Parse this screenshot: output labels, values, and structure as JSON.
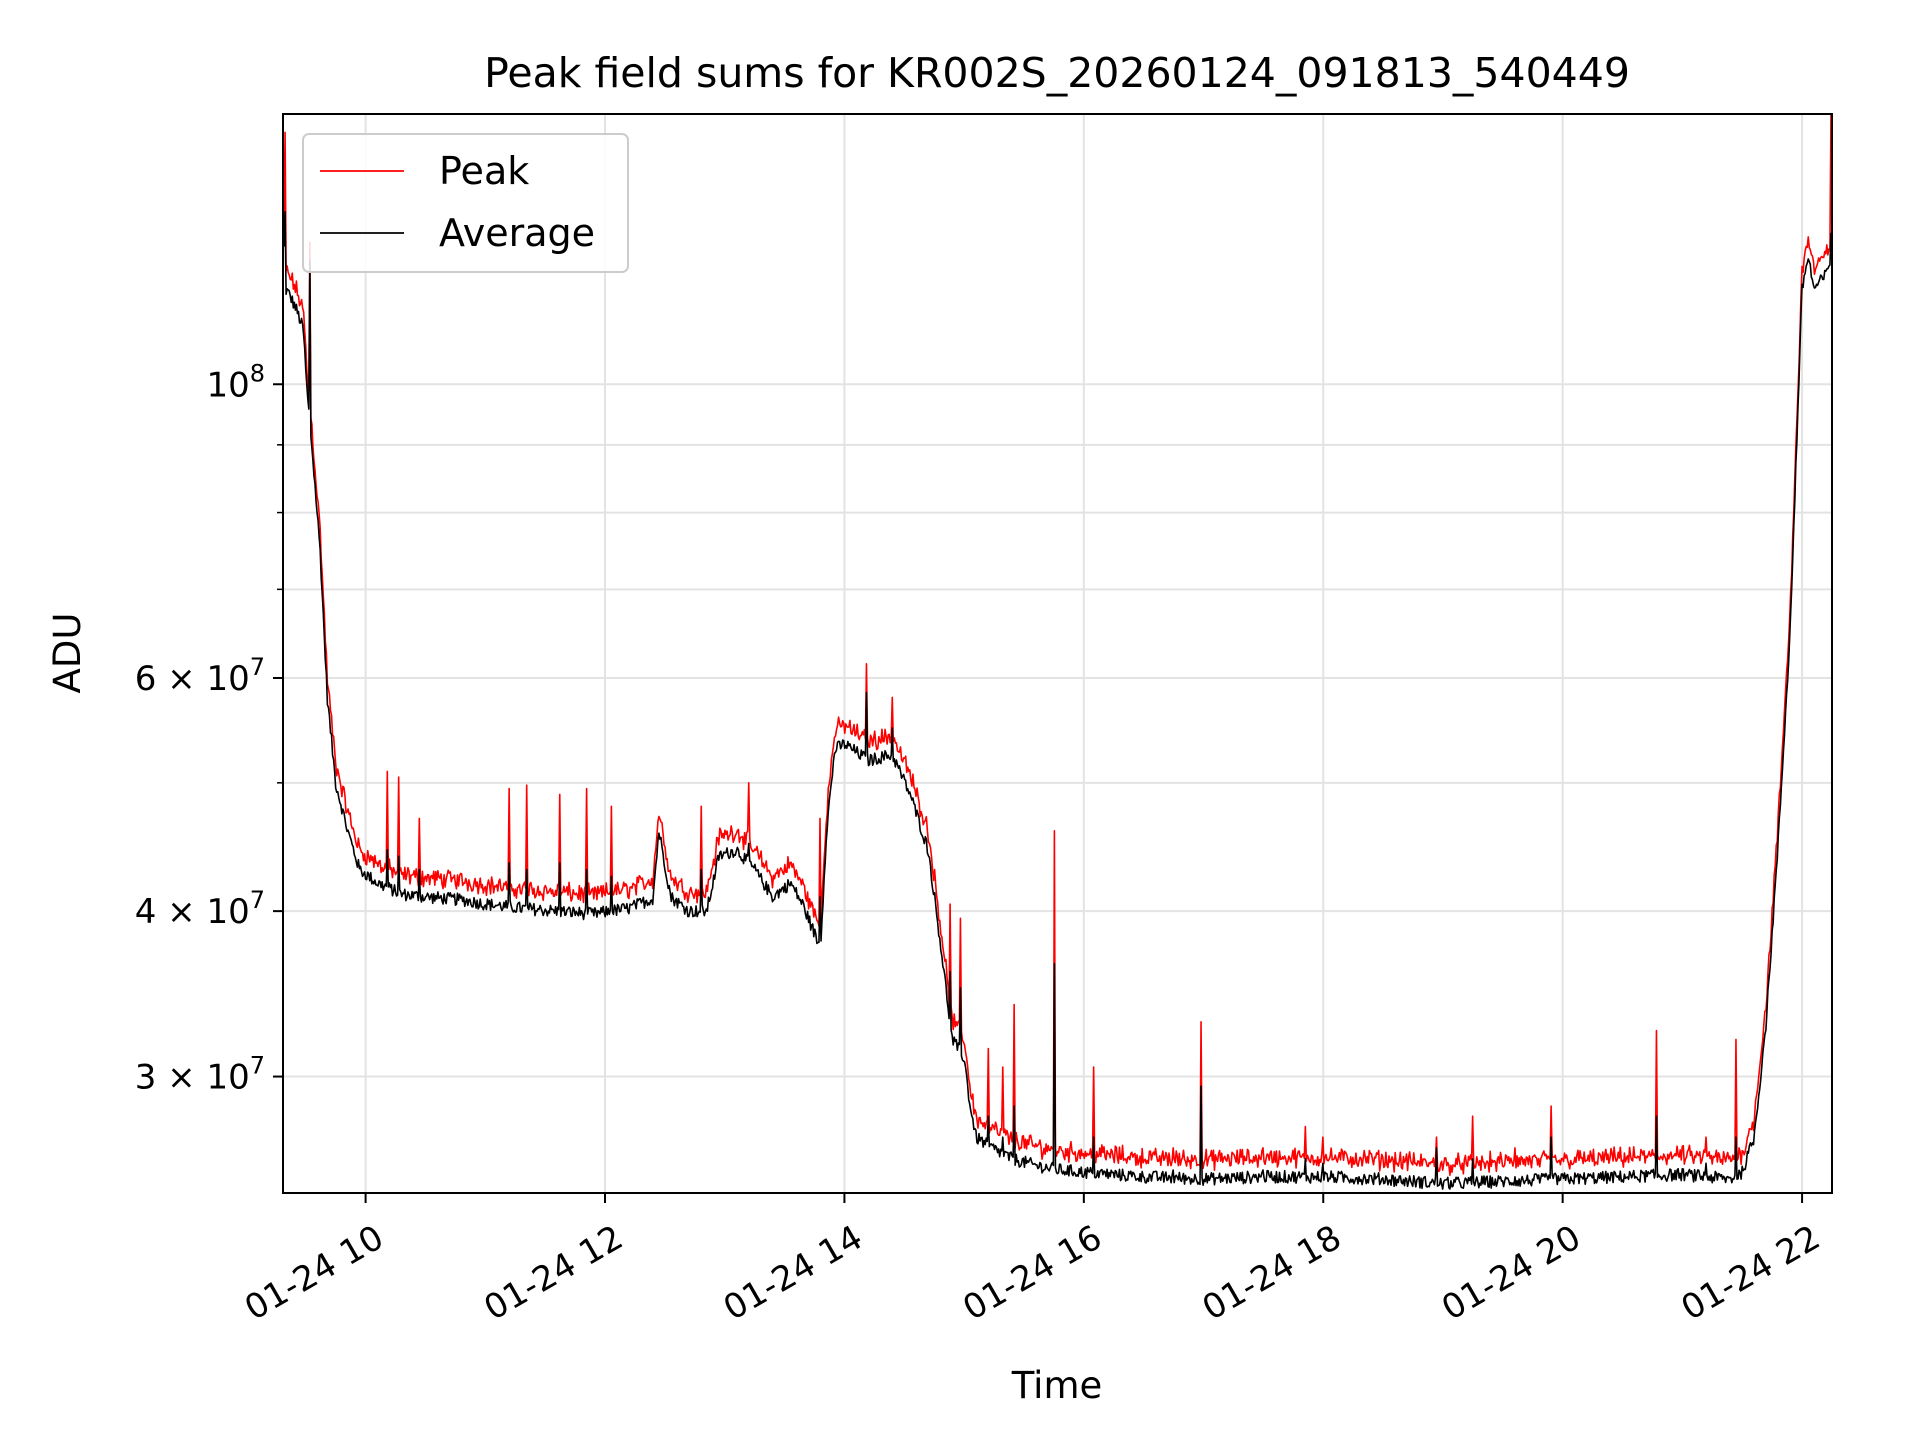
{
  "chart_data": {
    "type": "line",
    "title": "Peak field sums for KR002S_20260124_091813_540449",
    "xlabel": "Time",
    "ylabel": "ADU",
    "yscale": "log",
    "xlim_hours": [
      9.31,
      22.25
    ],
    "ylim": [
      24500000,
      160000000
    ],
    "grid": true,
    "legend_position": "upper-left",
    "x_ticks": [
      {
        "hour": 10,
        "label": "01-24 10"
      },
      {
        "hour": 12,
        "label": "01-24 12"
      },
      {
        "hour": 14,
        "label": "01-24 14"
      },
      {
        "hour": 16,
        "label": "01-24 16"
      },
      {
        "hour": 18,
        "label": "01-24 18"
      },
      {
        "hour": 20,
        "label": "01-24 20"
      },
      {
        "hour": 22,
        "label": "01-24 22"
      }
    ],
    "y_ticks": [
      {
        "value": 30000000,
        "mantissa": "3",
        "exp": "7"
      },
      {
        "value": 40000000,
        "mantissa": "4",
        "exp": "7"
      },
      {
        "value": 60000000,
        "mantissa": "6",
        "exp": "7"
      },
      {
        "value": 100000000,
        "mantissa": "",
        "exp": "8"
      }
    ],
    "y_minor_ticks": [
      50000000,
      70000000,
      80000000,
      90000000
    ],
    "series": [
      {
        "name": "Peak",
        "color": "#ff0000"
      },
      {
        "name": "Average",
        "color": "#000000"
      }
    ],
    "average_baseline": {
      "hours": [
        9.31,
        9.33,
        9.36,
        9.42,
        9.48,
        9.51,
        9.55,
        9.62,
        9.68,
        9.75,
        9.85,
        9.95,
        10.1,
        10.3,
        10.5,
        10.8,
        11.0,
        11.3,
        11.6,
        11.9,
        12.2,
        12.4,
        12.45,
        12.55,
        12.7,
        12.85,
        12.95,
        13.1,
        13.25,
        13.4,
        13.55,
        13.65,
        13.8,
        13.85,
        13.92,
        14.0,
        14.2,
        14.4,
        14.55,
        14.7,
        14.8,
        14.9,
        15.0,
        15.05,
        15.1,
        15.2,
        15.4,
        15.6,
        15.8,
        16.0,
        16.5,
        17.0,
        17.5,
        18.0,
        18.5,
        19.0,
        19.5,
        20.0,
        20.5,
        21.0,
        21.4,
        21.5,
        21.6,
        21.7,
        21.8,
        21.9,
        22.0,
        22.05,
        22.1,
        22.2,
        22.25
      ],
      "values": [
        134000000,
        118000000,
        117000000,
        114000000,
        110000000,
        99000000,
        90000000,
        75000000,
        58000000,
        50000000,
        46000000,
        43000000,
        42000000,
        41200000,
        41000000,
        40800000,
        40500000,
        40200000,
        40000000,
        39800000,
        40200000,
        40900000,
        46000000,
        41000000,
        40000000,
        40000000,
        44000000,
        44500000,
        43000000,
        41000000,
        42000000,
        40500000,
        37500000,
        46000000,
        53000000,
        53500000,
        52000000,
        52500000,
        49000000,
        44500000,
        38000000,
        32000000,
        31000000,
        28500000,
        27000000,
        26600000,
        26000000,
        25700000,
        25500000,
        25400000,
        25200000,
        25100000,
        25200000,
        25200000,
        25100000,
        24900000,
        25000000,
        25100000,
        25200000,
        25300000,
        25100000,
        25400000,
        27000000,
        33000000,
        45000000,
        65000000,
        118000000,
        125000000,
        118000000,
        121000000,
        125000000
      ]
    },
    "peak_offset_ratio": 1.03,
    "spikes": [
      {
        "hour": 9.33,
        "peak": 155000000,
        "average": 135000000
      },
      {
        "hour": 9.53,
        "peak": 128000000,
        "average": 124000000
      },
      {
        "hour": 10.18,
        "peak": 51000000,
        "average": 44500000
      },
      {
        "hour": 10.28,
        "peak": 50500000,
        "average": 44000000
      },
      {
        "hour": 10.45,
        "peak": 47000000,
        "average": 43000000
      },
      {
        "hour": 11.2,
        "peak": 49500000,
        "average": 43500000
      },
      {
        "hour": 11.35,
        "peak": 49800000,
        "average": 43000000
      },
      {
        "hour": 11.62,
        "peak": 49000000,
        "average": 43500000
      },
      {
        "hour": 11.85,
        "peak": 49500000,
        "average": 43000000
      },
      {
        "hour": 12.05,
        "peak": 48000000,
        "average": 42500000
      },
      {
        "hour": 12.8,
        "peak": 48000000,
        "average": 43000000
      },
      {
        "hour": 13.2,
        "peak": 50000000,
        "average": 45000000
      },
      {
        "hour": 13.8,
        "peak": 47000000,
        "average": 41000000
      },
      {
        "hour": 14.18,
        "peak": 61500000,
        "average": 58500000
      },
      {
        "hour": 14.4,
        "peak": 58000000,
        "average": 55000000
      },
      {
        "hour": 14.88,
        "peak": 40500000,
        "average": 36000000
      },
      {
        "hour": 14.97,
        "peak": 39500000,
        "average": 35000000
      },
      {
        "hour": 15.2,
        "peak": 31500000,
        "average": 28000000
      },
      {
        "hour": 15.32,
        "peak": 30500000,
        "average": 27000000
      },
      {
        "hour": 15.42,
        "peak": 34000000,
        "average": 28500000
      },
      {
        "hour": 15.75,
        "peak": 46000000,
        "average": 36500000
      },
      {
        "hour": 16.08,
        "peak": 30500000,
        "average": 27000000
      },
      {
        "hour": 16.75,
        "peak": 26500000,
        "average": 25500000
      },
      {
        "hour": 16.98,
        "peak": 33000000,
        "average": 29500000
      },
      {
        "hour": 17.5,
        "peak": 26500000,
        "average": 25500000
      },
      {
        "hour": 17.85,
        "peak": 27500000,
        "average": 26000000
      },
      {
        "hour": 18.0,
        "peak": 27000000,
        "average": 25800000
      },
      {
        "hour": 18.95,
        "peak": 27000000,
        "average": 26500000
      },
      {
        "hour": 19.25,
        "peak": 28000000,
        "average": 26000000
      },
      {
        "hour": 19.6,
        "peak": 26500000,
        "average": 25200000
      },
      {
        "hour": 19.9,
        "peak": 28500000,
        "average": 27000000
      },
      {
        "hour": 20.78,
        "peak": 32500000,
        "average": 28000000
      },
      {
        "hour": 21.2,
        "peak": 27000000,
        "average": 25800000
      },
      {
        "hour": 21.45,
        "peak": 32000000,
        "average": 27000000
      },
      {
        "hour": 22.24,
        "peak": 160000000,
        "average": 130000000
      }
    ]
  }
}
